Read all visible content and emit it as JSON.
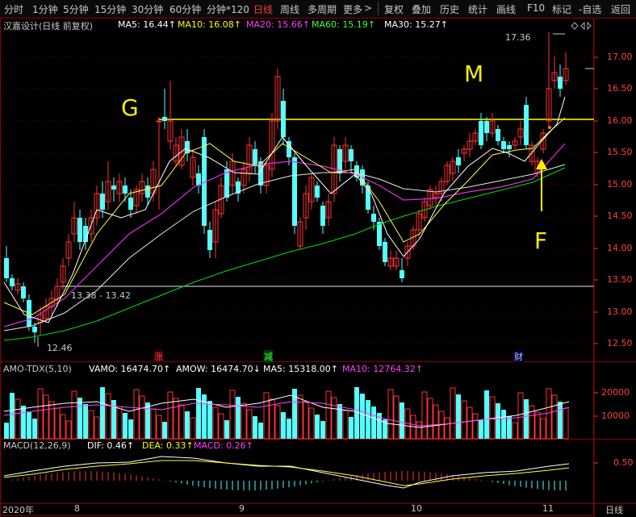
{
  "toolbar": {
    "periods": [
      "分时",
      "1分钟",
      "5分钟",
      "15分钟",
      "30分钟",
      "60分钟",
      "分钟*120",
      "日线",
      "周线",
      "多周期",
      "更多"
    ],
    "active": "日线",
    "more_arrow": ">",
    "actions": [
      "复权",
      "叠加",
      "历史",
      "统计",
      "画线",
      "F10",
      "标记",
      "-自选",
      "返回"
    ]
  },
  "stock": {
    "title": "汉嘉设计(日线 前复权)",
    "ma5": "MA5: 16.44↑",
    "ma10": "MA10: 16.08↑",
    "ma20": "MA20: 15.66↑",
    "ma60": "MA60: 15.19↑",
    "ma30": "MA30: 15.27↑"
  },
  "price_axis": [
    "17.00",
    "16.50",
    "16.00",
    "15.50",
    "15.00",
    "14.50",
    "14.00",
    "13.50",
    "13.00",
    "12.50"
  ],
  "annotations": {
    "high": "17.36",
    "low": "12.46",
    "gap_range": "13.38 - 13.42",
    "label_g": "G",
    "label_m": "M",
    "label_f": "F",
    "event_1": "涨",
    "event_2": "减",
    "event_3": "财"
  },
  "volume": {
    "title": "AMO-TDX(5,10)",
    "vamo": "VAMO: 16474.70↑",
    "amow": "AMOW: 16474.70↓",
    "ma5": "MA5: 15318.00↑",
    "ma10": "MA10: 12764.32↑",
    "axis": [
      "20000",
      "10000"
    ]
  },
  "macd": {
    "title": "MACD(12,26,9)",
    "dif": "DIF: 0.46↑",
    "dea": "DEA: 0.33↑",
    "macd": "MACD: 0.26↑",
    "axis": [
      "0.50"
    ]
  },
  "months": [
    "2020年",
    "8",
    "9",
    "10",
    "11"
  ],
  "period_label": "日线",
  "colors": {
    "up": "#ff3232",
    "down": "#54ffff",
    "ma5": "#ffffff",
    "ma10": "#ffff00",
    "ma20": "#ff00ff",
    "ma60": "#00ff00",
    "ma30": "#ffffff"
  },
  "icons": [
    "diamond-icon",
    "scroll-left-icon",
    "scroll-right-icon"
  ]
}
